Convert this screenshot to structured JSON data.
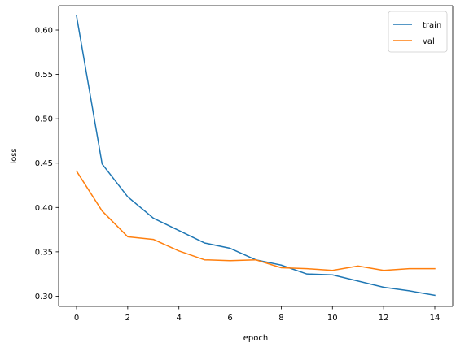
{
  "chart_data": {
    "type": "line",
    "title": "",
    "xlabel": "epoch",
    "ylabel": "loss",
    "xlim": [
      -0.7,
      14.7
    ],
    "ylim": [
      0.2885,
      0.6275
    ],
    "xticks": [
      0,
      2,
      4,
      6,
      8,
      10,
      12,
      14
    ],
    "xtick_labels": [
      "0",
      "2",
      "4",
      "6",
      "8",
      "10",
      "12",
      "14"
    ],
    "yticks": [
      0.3,
      0.35,
      0.4,
      0.45,
      0.5,
      0.55,
      0.6
    ],
    "ytick_labels": [
      "0.30",
      "0.35",
      "0.40",
      "0.45",
      "0.50",
      "0.55",
      "0.60"
    ],
    "grid": false,
    "legend_position": "top-right",
    "x": [
      0,
      1,
      2,
      3,
      4,
      5,
      6,
      7,
      8,
      9,
      10,
      11,
      12,
      13,
      14
    ],
    "series": [
      {
        "name": "train",
        "color": "#1f77b4",
        "values": [
          0.616,
          0.449,
          0.412,
          0.388,
          0.374,
          0.36,
          0.354,
          0.341,
          0.335,
          0.325,
          0.324,
          0.317,
          0.31,
          0.306,
          0.301
        ]
      },
      {
        "name": "val",
        "color": "#ff7f0e",
        "values": [
          0.441,
          0.396,
          0.367,
          0.364,
          0.351,
          0.341,
          0.34,
          0.341,
          0.332,
          0.331,
          0.329,
          0.334,
          0.329,
          0.331,
          0.331
        ]
      }
    ]
  }
}
